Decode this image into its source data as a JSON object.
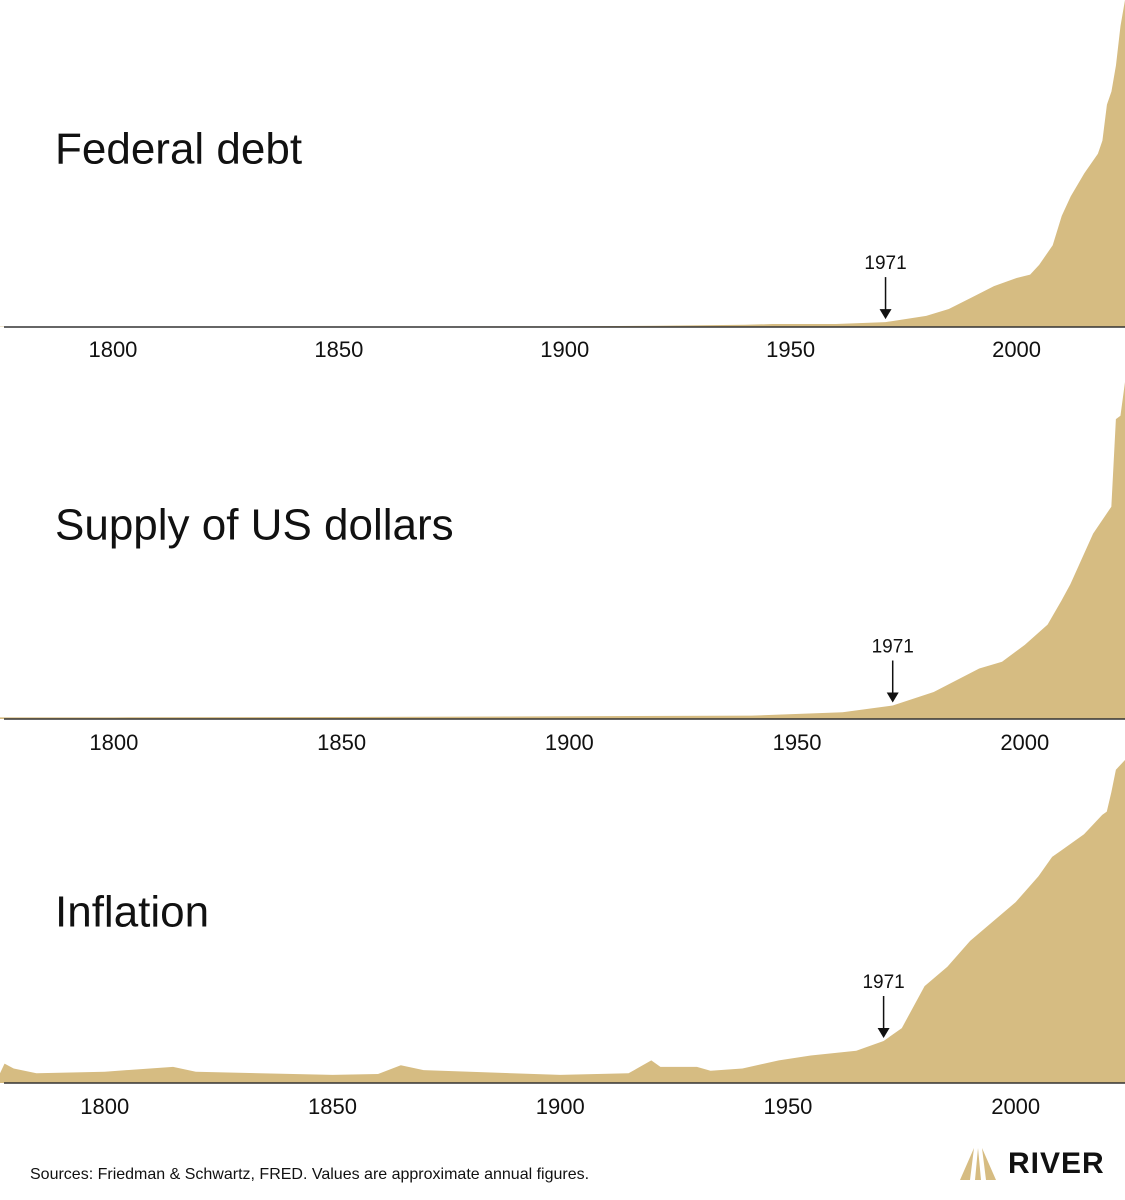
{
  "chart_data": [
    {
      "type": "area",
      "title": "Federal debt",
      "color": "#d6bc82",
      "x": [
        1775,
        1800,
        1850,
        1900,
        1920,
        1940,
        1946,
        1960,
        1971,
        1980,
        1985,
        1990,
        1995,
        2000,
        2003,
        2005,
        2008,
        2010,
        2012,
        2015,
        2018,
        2019,
        2020,
        2021,
        2022,
        2023,
        2024
      ],
      "values": [
        0.1,
        0.1,
        0.1,
        0.2,
        0.4,
        0.7,
        0.9,
        0.9,
        1.5,
        3.4,
        5.5,
        9,
        12.5,
        15,
        16,
        19,
        25,
        34,
        40,
        47,
        53,
        57,
        68,
        72,
        80,
        92,
        100
      ],
      "xlim": [
        1775,
        2024
      ],
      "ylim": [
        0,
        100
      ],
      "xticks": [
        1800,
        1850,
        1900,
        1950,
        2000
      ],
      "annotation": {
        "label": "1971",
        "x": 1971
      }
    },
    {
      "type": "area",
      "title": "Supply of US dollars",
      "color": "#d6bc82",
      "x": [
        1775,
        1800,
        1850,
        1900,
        1940,
        1960,
        1971,
        1980,
        1990,
        1995,
        2000,
        2005,
        2008,
        2010,
        2015,
        2019,
        2020,
        2021,
        2022
      ],
      "values": [
        0.5,
        0.5,
        0.6,
        0.8,
        1,
        2,
        4,
        8,
        15,
        17,
        22,
        28,
        35,
        40,
        55,
        63,
        89,
        90,
        100
      ],
      "xlim": [
        1775,
        2022
      ],
      "ylim": [
        0,
        100
      ],
      "xticks": [
        1800,
        1850,
        1900,
        1950,
        2000
      ],
      "annotation": {
        "label": "1971",
        "x": 1971
      }
    },
    {
      "type": "area",
      "title": "Inflation",
      "color": "#d6bc82",
      "x": [
        1777,
        1778,
        1780,
        1785,
        1800,
        1815,
        1820,
        1850,
        1860,
        1865,
        1870,
        1900,
        1915,
        1920,
        1922,
        1930,
        1933,
        1940,
        1948,
        1955,
        1965,
        1971,
        1975,
        1980,
        1985,
        1990,
        1995,
        2000,
        2005,
        2008,
        2010,
        2015,
        2019,
        2020,
        2021,
        2022,
        2024
      ],
      "values": [
        3,
        6,
        4.5,
        3,
        3.5,
        5,
        3.5,
        2.5,
        2.8,
        5.5,
        4,
        2.5,
        3,
        7,
        5,
        5,
        3.8,
        4.5,
        7,
        8.5,
        10,
        13,
        17,
        30,
        36,
        44,
        50,
        56,
        64,
        70,
        72,
        77,
        83,
        84,
        90,
        97,
        100
      ],
      "xlim": [
        1777,
        2024
      ],
      "ylim": [
        0,
        100
      ],
      "xticks": [
        1800,
        1850,
        1900,
        1950,
        2000
      ],
      "annotation": {
        "label": "1971",
        "x": 1971
      }
    }
  ],
  "footer": {
    "source": "Sources: Friedman & Schwartz, FRED. Values are approximate annual figures.",
    "brand": "RIVER"
  }
}
